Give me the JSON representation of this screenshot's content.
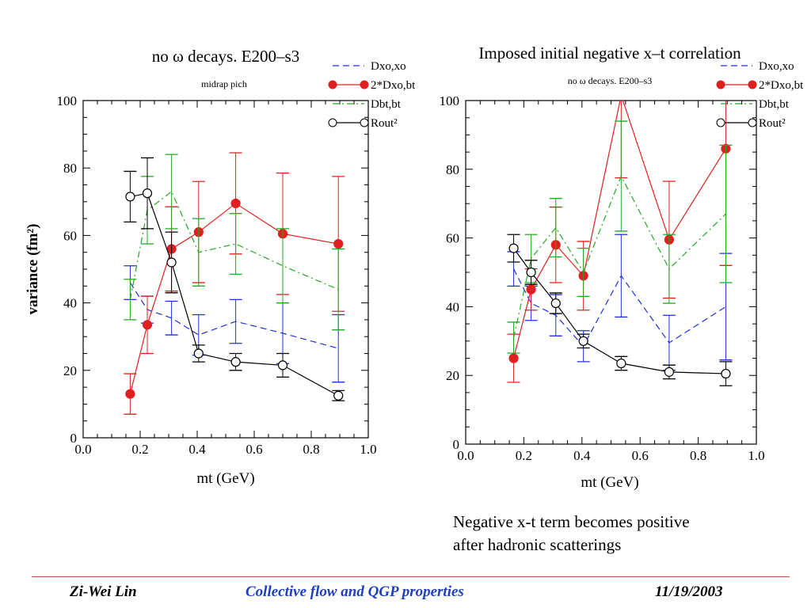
{
  "chart_data": [
    {
      "type": "line",
      "title": "no ω decays. E200–s3",
      "subtitle": "midrap pich",
      "xlabel": "mt (GeV)",
      "ylabel": "variance (fm²)",
      "xlim": [
        0.0,
        1.0
      ],
      "ylim": [
        0,
        100
      ],
      "x_ticks": [
        "0.0",
        "0.2",
        "0.4",
        "0.6",
        "0.8",
        "1.0"
      ],
      "y_ticks": [
        "0",
        "20",
        "40",
        "60",
        "80",
        "100"
      ],
      "grid": false,
      "legend": "top-right, outside",
      "series": [
        {
          "name": "Dxo,xo",
          "color": "#1f2fdf",
          "style": "dash",
          "marker": "none",
          "x": [
            0.165,
            0.225,
            0.31,
            0.405,
            0.535,
            0.7,
            0.895
          ],
          "y": [
            46,
            38,
            35.5,
            30.5,
            34.5,
            31,
            26.5
          ],
          "err": [
            5,
            4,
            5,
            6,
            6.5,
            9,
            10
          ]
        },
        {
          "name": "2*Dxo,bt",
          "color": "#e02020",
          "style": "solid",
          "marker": "filled-circle",
          "x": [
            0.165,
            0.225,
            0.31,
            0.405,
            0.535,
            0.7,
            0.895
          ],
          "y": [
            13,
            33.5,
            56,
            61,
            69.5,
            60.5,
            57.5
          ],
          "err": [
            6,
            8.5,
            12.5,
            15,
            15,
            18,
            20
          ]
        },
        {
          "name": "Dbt,bt",
          "color": "#22aa22",
          "style": "dashdot",
          "marker": "none",
          "x": [
            0.165,
            0.225,
            0.31,
            0.405,
            0.535,
            0.7,
            0.895
          ],
          "y": [
            41,
            67.5,
            73,
            55,
            57.5,
            51,
            44
          ],
          "err": [
            6,
            10,
            11,
            10,
            9,
            11,
            12
          ]
        },
        {
          "name": "Rout²",
          "color": "#000000",
          "style": "solid",
          "marker": "open-circle",
          "x": [
            0.165,
            0.225,
            0.31,
            0.405,
            0.535,
            0.7,
            0.895
          ],
          "y": [
            71.5,
            72.5,
            52,
            25,
            22.5,
            21.5,
            12.5
          ],
          "err": [
            7.5,
            10.5,
            9,
            2.5,
            2.5,
            3.5,
            1.5
          ]
        }
      ]
    },
    {
      "type": "line",
      "title": "Imposed initial negative x–t correlation",
      "subtitle": "no ω decays. E200–s3",
      "xlabel": "mt (GeV)",
      "ylabel": "",
      "xlim": [
        0.0,
        1.0
      ],
      "ylim": [
        0,
        100
      ],
      "x_ticks": [
        "0.0",
        "0.2",
        "0.4",
        "0.6",
        "0.8",
        "1.0"
      ],
      "y_ticks": [
        "0",
        "20",
        "40",
        "60",
        "80",
        "100"
      ],
      "grid": false,
      "legend": "top-right, outside",
      "series": [
        {
          "name": "Dxo,xo",
          "color": "#1f2fdf",
          "style": "dash",
          "marker": "none",
          "x": [
            0.165,
            0.225,
            0.31,
            0.405,
            0.535,
            0.7,
            0.895
          ],
          "y": [
            51,
            41,
            37.5,
            28.5,
            49,
            29.5,
            40
          ],
          "err": [
            5,
            5,
            6,
            4.5,
            12,
            8,
            15.5
          ]
        },
        {
          "name": "2*Dxo,bt",
          "color": "#e02020",
          "style": "solid",
          "marker": "filled-circle",
          "x": [
            0.165,
            0.225,
            0.31,
            0.405,
            0.535,
            0.7,
            0.895
          ],
          "y": [
            25,
            45,
            58,
            49,
            101.5,
            59.5,
            86
          ],
          "err": [
            7,
            6,
            11,
            10,
            24,
            17,
            34
          ]
        },
        {
          "name": "Dbt,bt",
          "color": "#22aa22",
          "style": "dashdot",
          "marker": "none",
          "x": [
            0.165,
            0.225,
            0.31,
            0.405,
            0.535,
            0.7,
            0.895
          ],
          "y": [
            31,
            54,
            63,
            50,
            78,
            51,
            67
          ],
          "err": [
            4.5,
            7,
            8.5,
            7,
            16,
            10,
            20
          ]
        },
        {
          "name": "Rout²",
          "color": "#000000",
          "style": "solid",
          "marker": "open-circle",
          "x": [
            0.165,
            0.225,
            0.31,
            0.405,
            0.535,
            0.7,
            0.895
          ],
          "y": [
            57,
            50,
            41,
            30,
            23.5,
            21,
            20.5
          ],
          "err": [
            4,
            3.5,
            3,
            2,
            2,
            2,
            3.5
          ]
        }
      ]
    }
  ],
  "annotation": {
    "line1": "Negative x-t term becomes positive",
    "line2": "after hadronic scatterings"
  },
  "footer": {
    "author": "Zi-Wei Lin",
    "title": "Collective flow and QGP properties",
    "date": "11/19/2003"
  },
  "colors": {
    "footer_rule": "#c0504d",
    "footer_title": "#1f3fbf"
  }
}
